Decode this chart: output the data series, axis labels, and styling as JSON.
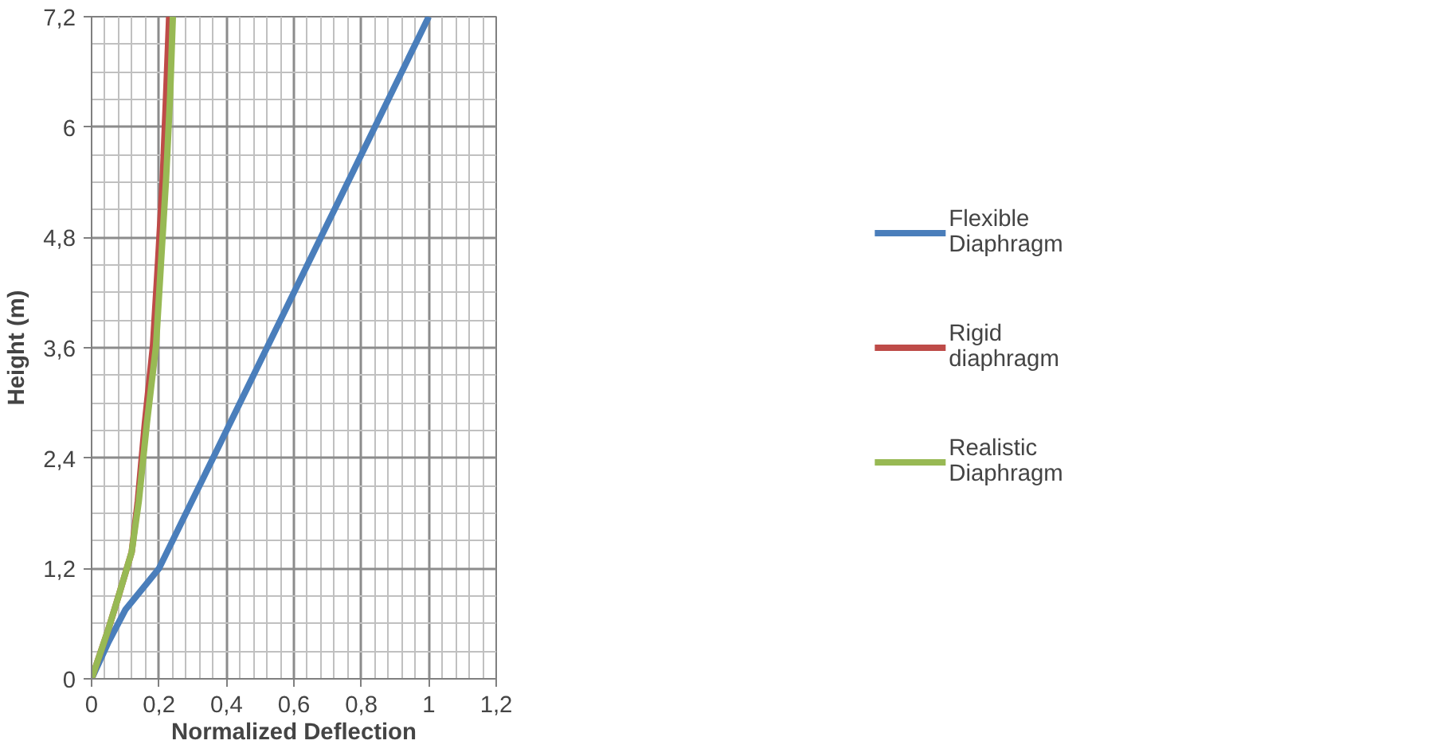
{
  "chart_data": {
    "type": "line",
    "xlabel": "Normalized Deflection",
    "ylabel": "Height (m)",
    "xlim": [
      0,
      1.2
    ],
    "ylim": [
      0,
      7.2
    ],
    "xticks": [
      0,
      {
        "value": 0.2,
        "label": "0,2"
      },
      {
        "value": 0.4,
        "label": "0,4"
      },
      {
        "value": 0.6,
        "label": "0,6"
      },
      {
        "value": 0.8,
        "label": "0,8"
      },
      1,
      {
        "value": 1.2,
        "label": "1,2"
      }
    ],
    "yticks": [
      0,
      {
        "value": 1.2,
        "label": "1,2"
      },
      {
        "value": 2.4,
        "label": "2,4"
      },
      {
        "value": 3.6,
        "label": "3,6"
      },
      {
        "value": 4.8,
        "label": "4,8"
      },
      6,
      {
        "value": 7.2,
        "label": "7,2"
      }
    ],
    "grid": true,
    "legend": "right",
    "marker": "none",
    "line_style": "solid",
    "series": [
      {
        "name": "Flexible Diaphragm",
        "color": "#4a7ebb",
        "x": [
          0,
          0.05,
          0.1,
          0.2,
          0.36,
          0.52,
          0.68,
          0.84,
          1.0
        ],
        "values": [
          0,
          0.4,
          0.75,
          1.2,
          2.4,
          3.6,
          4.8,
          6.0,
          7.2
        ]
      },
      {
        "name": "Rigid diaphragm",
        "color": "#be4b48",
        "x": [
          0,
          0.049,
          0.08,
          0.119,
          0.137,
          0.158,
          0.182,
          0.197,
          0.211,
          0.221,
          0.23
        ],
        "values": [
          0,
          0.53,
          0.9,
          1.38,
          1.93,
          2.78,
          3.62,
          4.53,
          5.44,
          6.35,
          7.2
        ]
      },
      {
        "name": "Realistic Diaphragm",
        "color": "#98b954",
        "x": [
          0,
          0.049,
          0.08,
          0.119,
          0.14,
          0.164,
          0.191,
          0.206,
          0.221,
          0.233,
          0.241
        ],
        "values": [
          0,
          0.53,
          0.9,
          1.38,
          1.93,
          2.78,
          3.62,
          4.53,
          5.44,
          6.35,
          7.2
        ]
      }
    ]
  }
}
